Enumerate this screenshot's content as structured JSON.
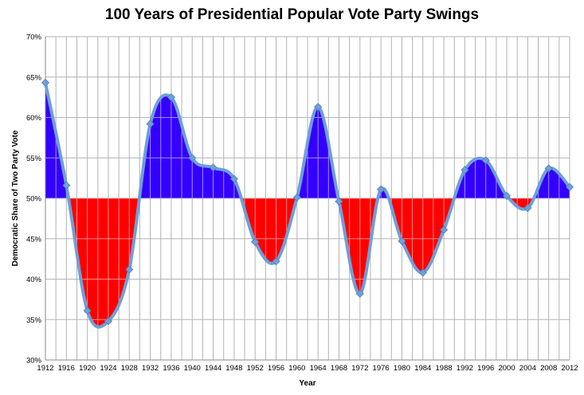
{
  "chart_data": {
    "type": "area",
    "title": "100 Years of Presidential Popular Vote Party Swings",
    "xlabel": "Year",
    "ylabel": "Democratic Share of Two Party Vote",
    "ylim": [
      30,
      70
    ],
    "y_ticks": [
      "30%",
      "35%",
      "40%",
      "45%",
      "50%",
      "55%",
      "60%",
      "65%",
      "70%"
    ],
    "y_tick_values": [
      30,
      35,
      40,
      45,
      50,
      55,
      60,
      65,
      70
    ],
    "x_ticks": [
      "1912",
      "1916",
      "1920",
      "1924",
      "1928",
      "1932",
      "1936",
      "1940",
      "1944",
      "1948",
      "1952",
      "1956",
      "1960",
      "1964",
      "1968",
      "1972",
      "1976",
      "1980",
      "1984",
      "1988",
      "1992",
      "1996",
      "2000",
      "2004",
      "2008",
      "2012"
    ],
    "baseline": 50,
    "grid": true,
    "colors": {
      "democratic_fill": "#3300ff",
      "republican_fill": "#ff0000",
      "line": "#6f9fd8",
      "marker": "#6f9fd8",
      "grid": "#b3b3b3"
    },
    "series": [
      {
        "x": [
          1912,
          1916,
          1920,
          1924,
          1928,
          1932,
          1936,
          1940,
          1944,
          1948,
          1952,
          1956,
          1960,
          1964,
          1968,
          1972,
          1976,
          1980,
          1984,
          1988,
          1992,
          1996,
          2000,
          2004,
          2008,
          2012
        ],
        "values": [
          64.3,
          51.6,
          36.1,
          34.8,
          41.2,
          59.2,
          62.5,
          55.0,
          53.8,
          52.4,
          44.6,
          42.2,
          50.1,
          61.3,
          49.6,
          38.2,
          51.1,
          44.7,
          40.8,
          46.1,
          53.5,
          54.7,
          50.3,
          48.8,
          53.7,
          51.4
        ]
      }
    ]
  }
}
